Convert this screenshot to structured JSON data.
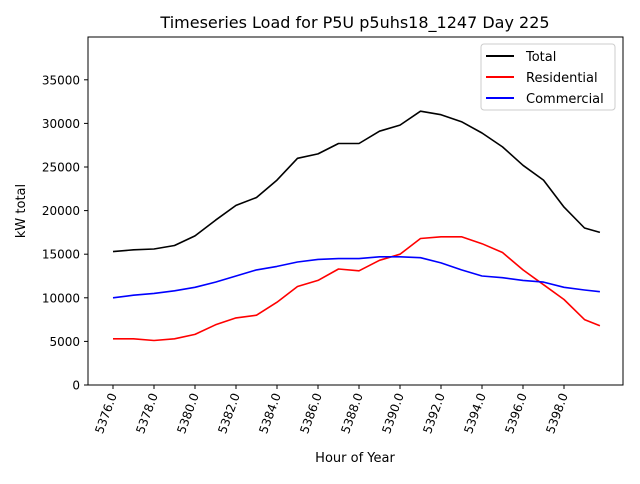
{
  "chart_data": {
    "type": "line",
    "title": "Timeseries Load for P5U p5uhs18_1247  Day 225",
    "xlabel": "Hour of Year",
    "ylabel": "kW total",
    "xlim": [
      5374.8,
      5401
    ],
    "ylim": [
      0,
      40000
    ],
    "xticks": [
      5376,
      5378,
      5380,
      5382,
      5384,
      5386,
      5388,
      5390,
      5392,
      5394,
      5396,
      5398
    ],
    "xtick_labels": [
      "5376.0",
      "5378.0",
      "5380.0",
      "5382.0",
      "5384.0",
      "5386.0",
      "5388.0",
      "5390.0",
      "5392.0",
      "5394.0",
      "5396.0",
      "5398.0"
    ],
    "yticks": [
      0,
      5000,
      10000,
      15000,
      20000,
      25000,
      30000,
      35000
    ],
    "ytick_labels": [
      "0",
      "5000",
      "10000",
      "15000",
      "20000",
      "25000",
      "30000",
      "35000"
    ],
    "grid": false,
    "legend_position": "top-right",
    "x": [
      5376,
      5377,
      5378,
      5379,
      5380,
      5381,
      5382,
      5383,
      5384,
      5385,
      5386,
      5387,
      5388,
      5389,
      5390,
      5391,
      5392,
      5393,
      5394,
      5395,
      5396,
      5397,
      5398,
      5399,
      5399.75
    ],
    "series": [
      {
        "name": "Total",
        "color": "#000000",
        "values": [
          15300,
          15500,
          15600,
          16000,
          17100,
          18900,
          20600,
          21500,
          23500,
          26000,
          26500,
          27700,
          27700,
          29100,
          29800,
          31400,
          31000,
          30200,
          28900,
          27300,
          25200,
          23500,
          20400,
          18000,
          17500
        ]
      },
      {
        "name": "Residential",
        "color": "#ff0000",
        "values": [
          5300,
          5300,
          5100,
          5300,
          5800,
          6900,
          7700,
          8000,
          9500,
          11300,
          12000,
          13300,
          13100,
          14300,
          15000,
          16800,
          17000,
          17000,
          16200,
          15200,
          13200,
          11500,
          9800,
          7500,
          6800
        ]
      },
      {
        "name": "Commercial",
        "color": "#0000ff",
        "values": [
          10000,
          10300,
          10500,
          10800,
          11200,
          11800,
          12500,
          13200,
          13600,
          14100,
          14400,
          14500,
          14500,
          14700,
          14700,
          14600,
          14000,
          13200,
          12500,
          12300,
          12000,
          11800,
          11200,
          10900,
          10700
        ]
      }
    ]
  }
}
